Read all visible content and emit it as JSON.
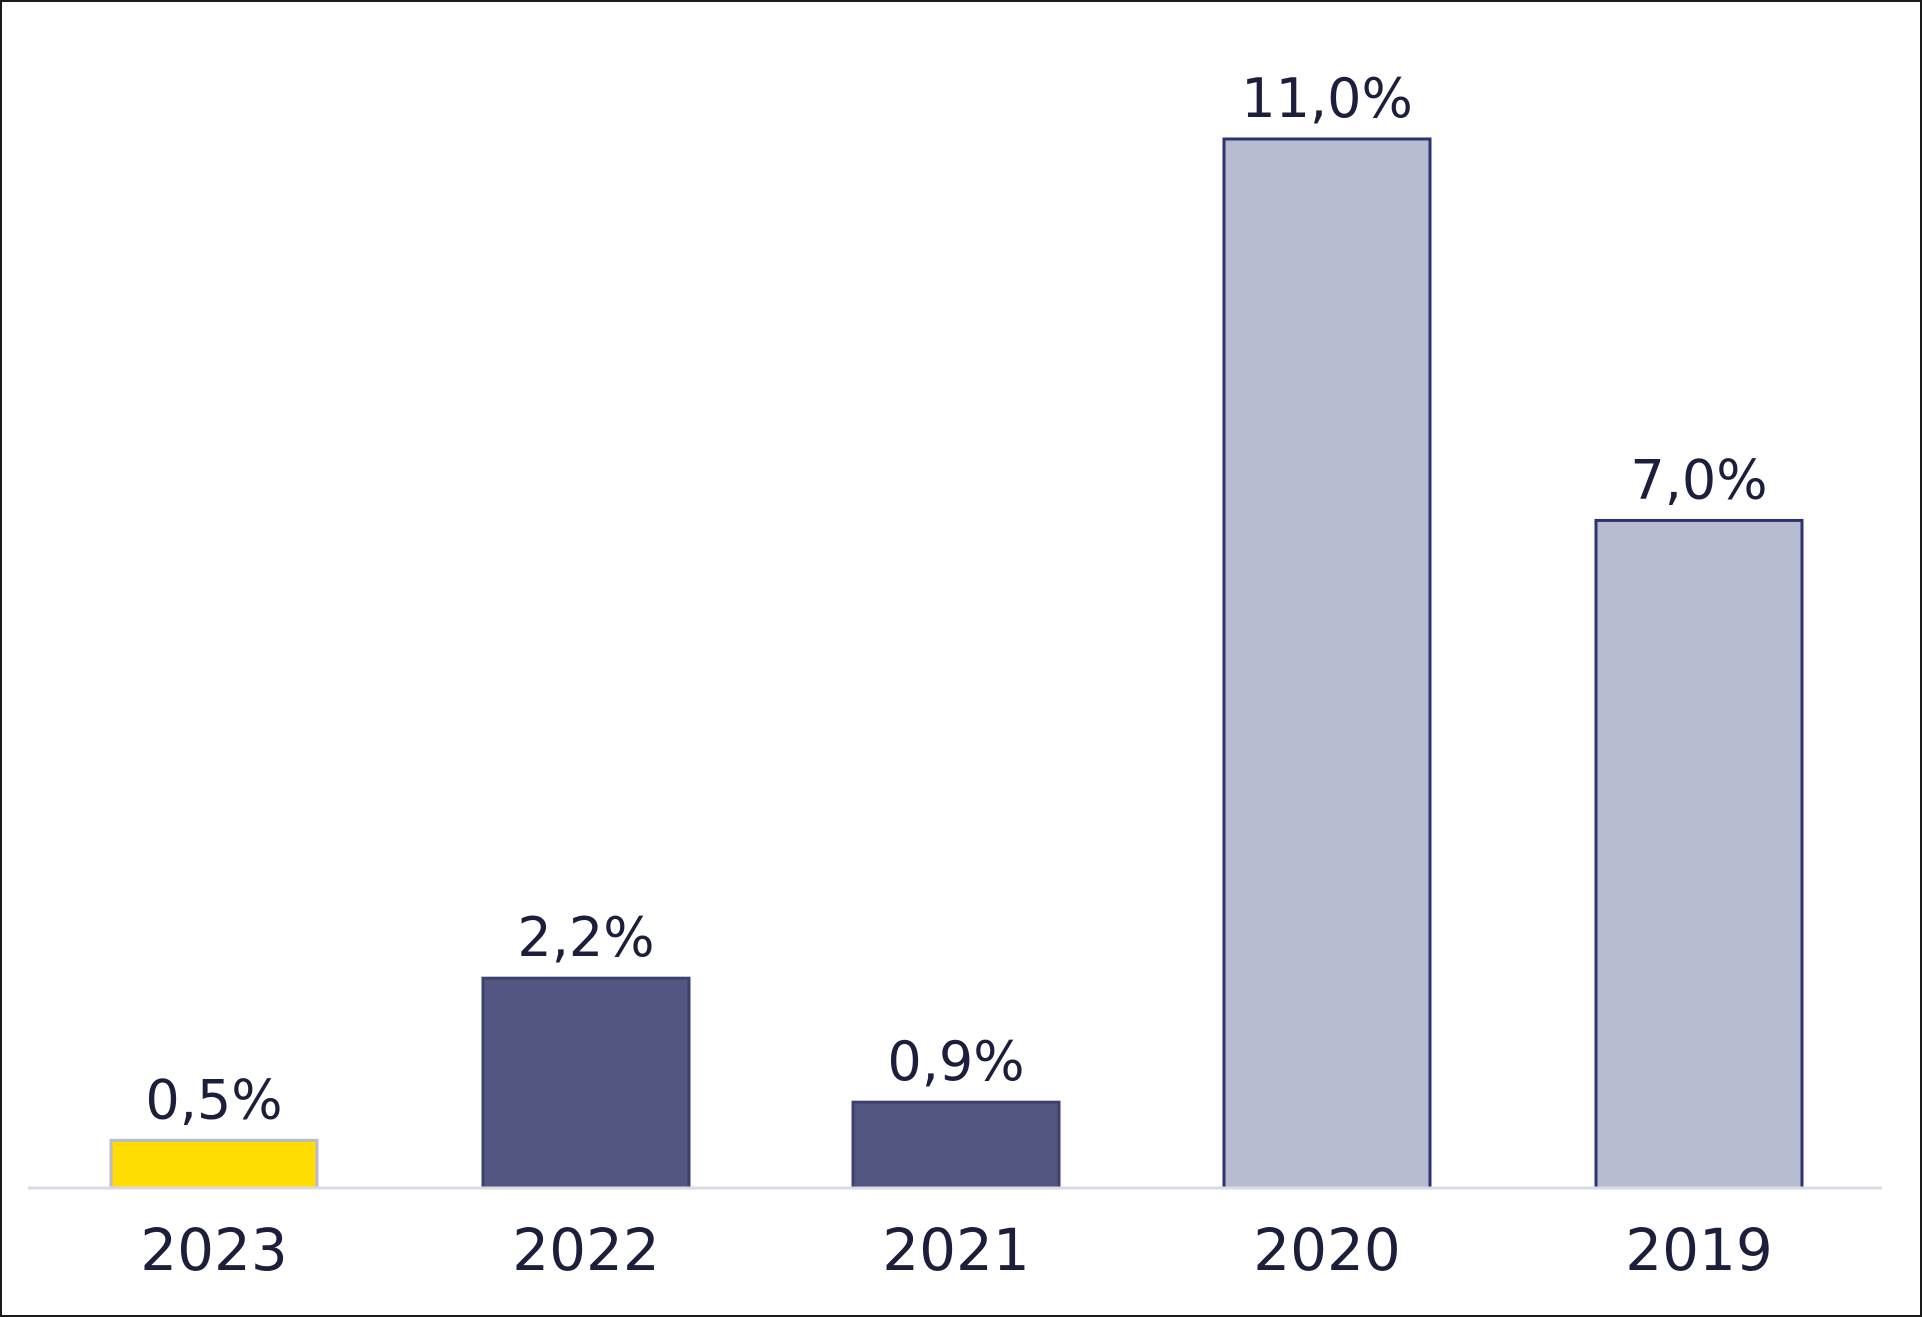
{
  "chart_data": {
    "type": "bar",
    "categories": [
      "2023",
      "2022",
      "2021",
      "2020",
      "2019"
    ],
    "values": [
      0.5,
      2.2,
      0.9,
      11.0,
      7.0
    ],
    "value_labels": [
      "0,5%",
      "2,2%",
      "0,9%",
      "11,0%",
      "7,0%"
    ],
    "ylim": [
      0,
      11.0
    ],
    "grid": false,
    "bar_colors": [
      "#ffdd00",
      "#525680",
      "#525680",
      "#b8bcd0",
      "#b8bcd0"
    ],
    "bar_outline_colors": [
      "#b9bcd0",
      "#3d4170",
      "#3d4170",
      "#2e3470",
      "#2e3470"
    ],
    "baseline_color": "#d9dbe5",
    "text_color": "#1b1f3b"
  }
}
